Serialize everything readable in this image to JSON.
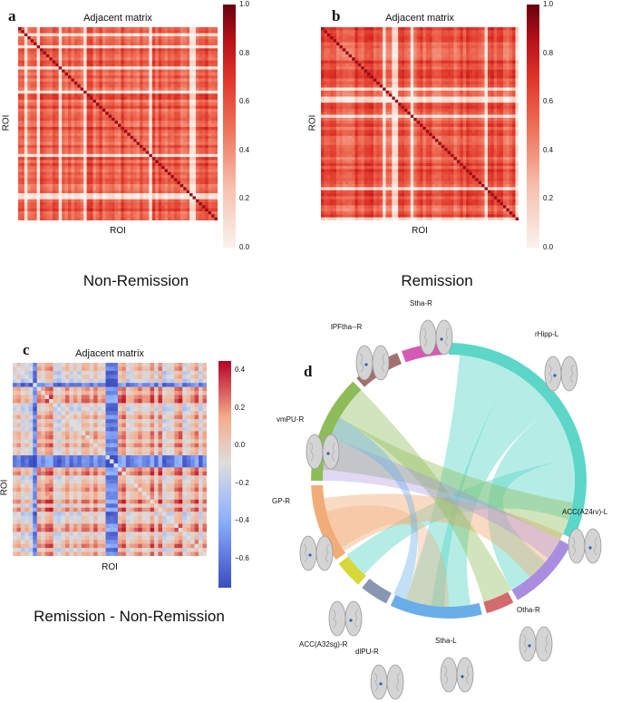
{
  "panels": {
    "a": {
      "letter": "a",
      "title": "Adjacent matrix",
      "xlabel": "ROI",
      "ylabel": "ROI",
      "caption": "Non-Remission",
      "colorbar_ticks": [
        "1.0",
        "0.8",
        "0.6",
        "0.4",
        "0.2",
        "0.0"
      ]
    },
    "b": {
      "letter": "b",
      "title": "Adjacent matrix",
      "xlabel": "ROI",
      "ylabel": "ROI",
      "caption": "Remission",
      "colorbar_ticks": [
        "1.0",
        "0.8",
        "0.6",
        "0.4",
        "0.2",
        "0.0"
      ]
    },
    "c": {
      "letter": "c",
      "title": "Adjacent matrix",
      "xlabel": "ROI",
      "ylabel": "ROI",
      "caption": "Remission - Non-Remission",
      "colorbar_ticks": [
        "0.4",
        "0.2",
        "0.0",
        "−0.2",
        "−0.4",
        "−0.6"
      ]
    },
    "d": {
      "letter": "d",
      "regions": [
        {
          "label": "Stha-R",
          "color": "#d45bb4"
        },
        {
          "label": "rHipp-L",
          "color": "#5cd6c7"
        },
        {
          "label": "ACC(A24rv)-L",
          "color": "#a98ee0"
        },
        {
          "label": "Otha-R",
          "color": "#d36a6e"
        },
        {
          "label": "Stha-L",
          "color": "#6aaee8"
        },
        {
          "label": "dlPU-R",
          "color": "#8896b2"
        },
        {
          "label": "ACC(A32sg)-R",
          "color": "#d7d93a"
        },
        {
          "label": "GP-R",
          "color": "#f2ac78"
        },
        {
          "label": "vmPU-R",
          "color": "#8ebc58"
        },
        {
          "label": "lPFtha--R",
          "color": "#a27070"
        }
      ]
    }
  },
  "colors": {
    "heat_low": "#fbf2ee",
    "heat_high": "#67000d",
    "div_pos": "#b40426",
    "div_neg": "#3b4cc0"
  }
}
